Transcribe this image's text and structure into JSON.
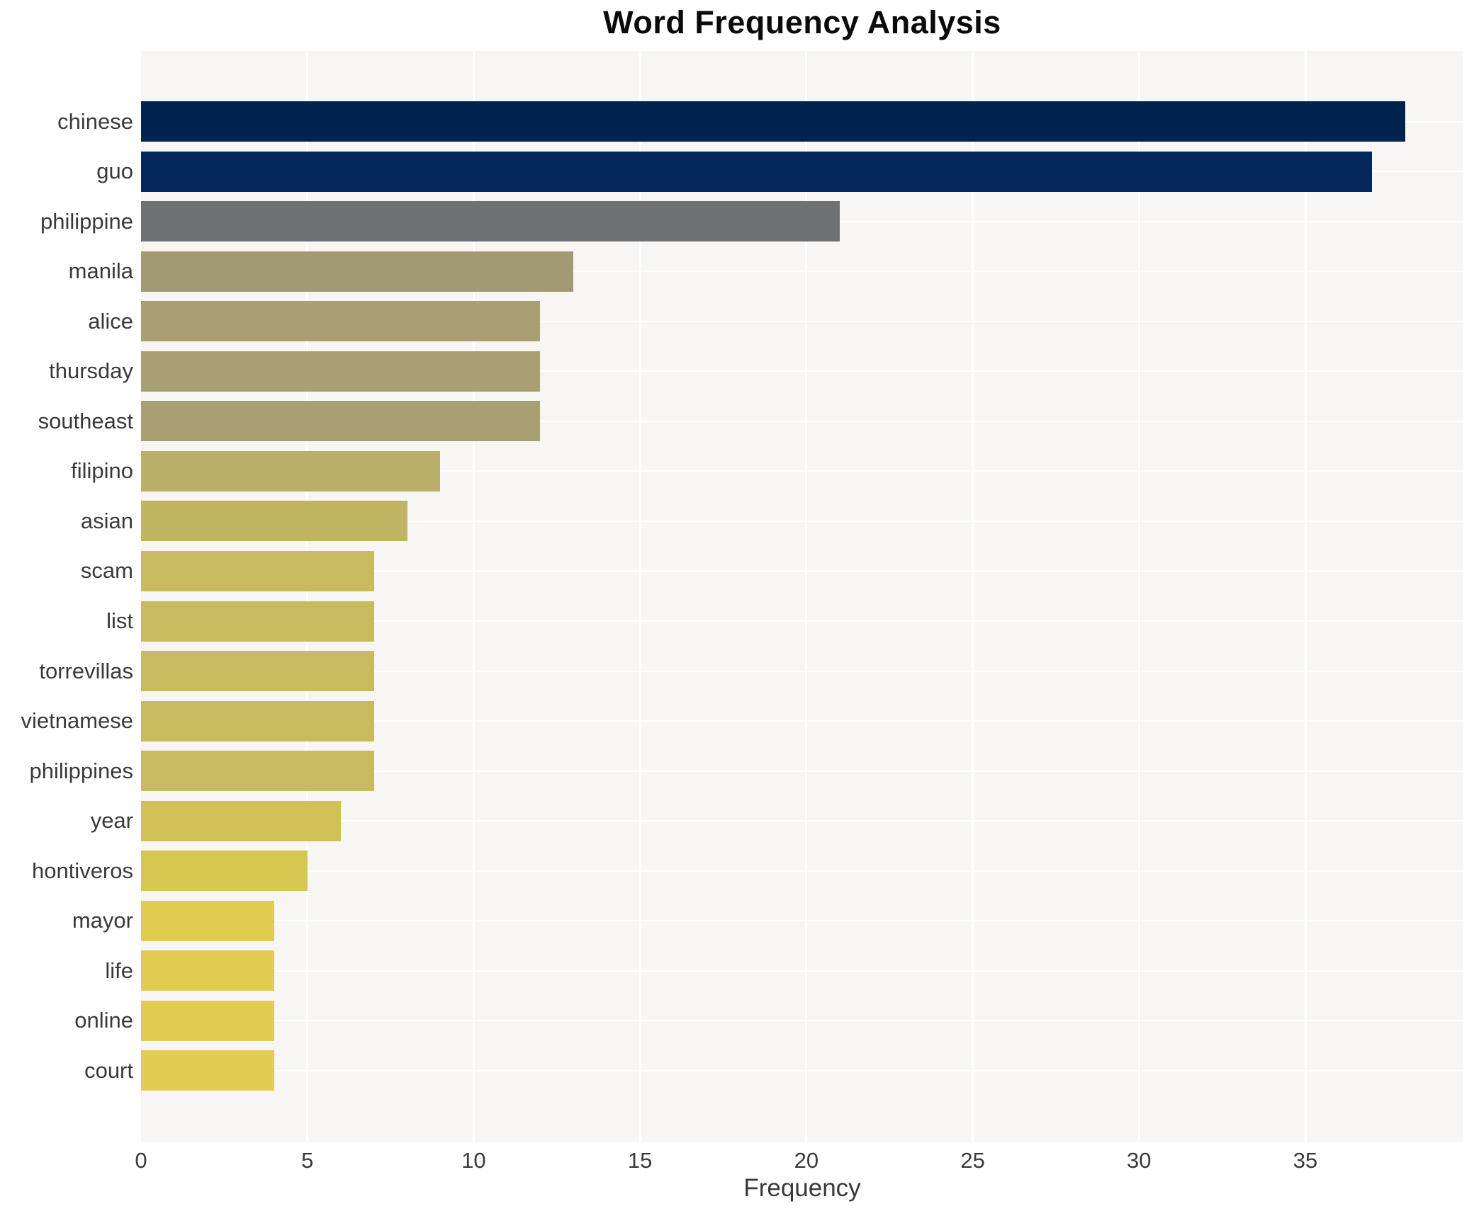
{
  "title": "Word Frequency Analysis",
  "chart_data": {
    "type": "bar",
    "orientation": "horizontal",
    "title": "Word Frequency Analysis",
    "xlabel": "Frequency",
    "ylabel": "",
    "categories": [
      "chinese",
      "guo",
      "philippine",
      "manila",
      "alice",
      "thursday",
      "southeast",
      "filipino",
      "asian",
      "scam",
      "list",
      "torrevillas",
      "vietnamese",
      "philippines",
      "year",
      "hontiveros",
      "mayor",
      "life",
      "online",
      "court"
    ],
    "values": [
      38,
      37,
      21,
      13,
      12,
      12,
      12,
      9,
      8,
      7,
      7,
      7,
      7,
      7,
      6,
      5,
      4,
      4,
      4,
      4
    ],
    "bar_colors": [
      "#00224e",
      "#04285a",
      "#6e7073",
      "#a29a73",
      "#a89f72",
      "#a89f72",
      "#a89f72",
      "#b9ae6a",
      "#c0b464",
      "#c8ba5e",
      "#c8ba5e",
      "#c8ba5e",
      "#c8ba5e",
      "#c8ba5e",
      "#cfc156",
      "#d6c750",
      "#e1cc52",
      "#e1cc52",
      "#e1cc52",
      "#e2cd52"
    ],
    "xlim": [
      0,
      39.75
    ],
    "xticks": [
      0,
      5,
      10,
      15,
      20,
      25,
      30,
      35
    ],
    "grid": true,
    "legend": "none",
    "plot_bg_color": "#f7f6f4",
    "grid_color": "#ffffff",
    "text_color": "#3a3a3a",
    "title_color": "#0a0a0a"
  }
}
